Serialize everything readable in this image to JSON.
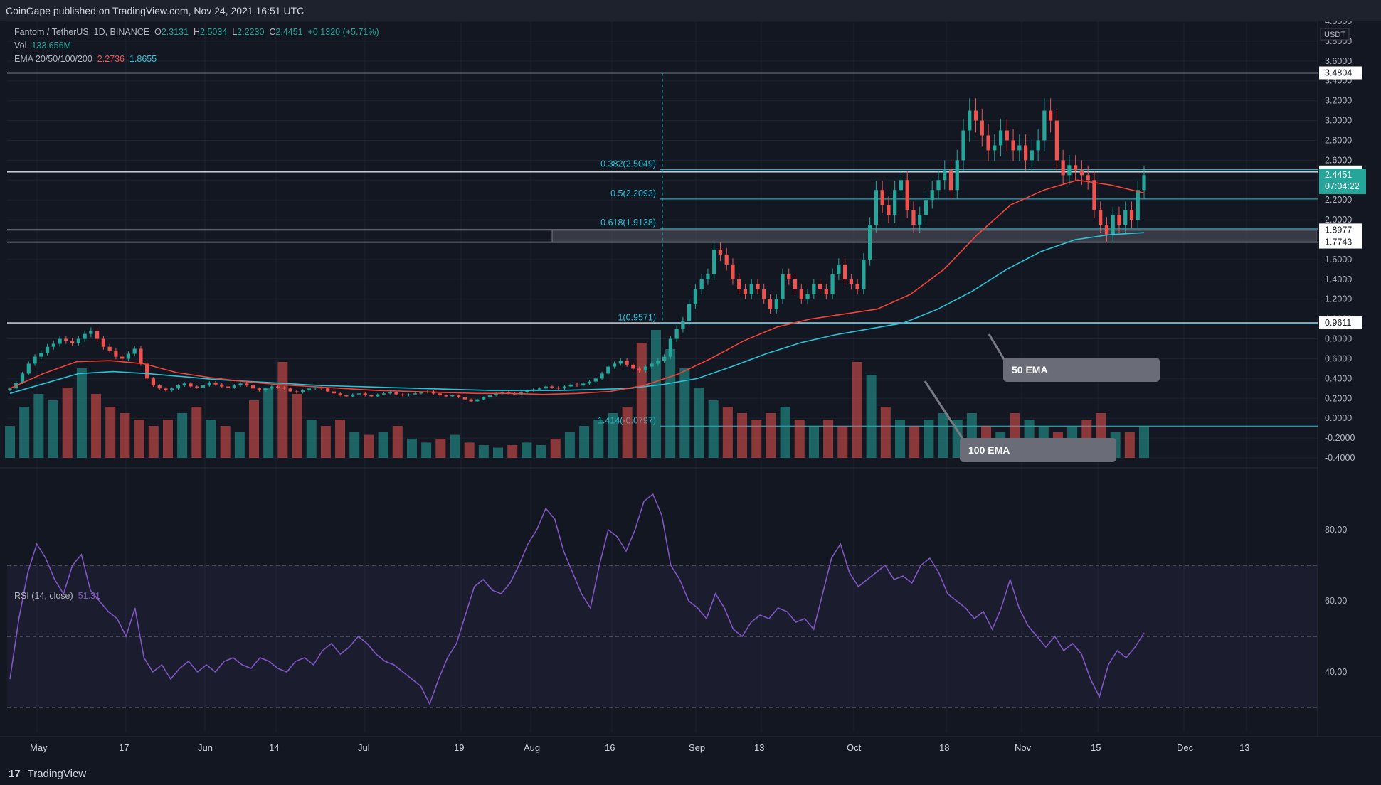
{
  "header": {
    "published": "CoinGape published on TradingView.com, Nov 24, 2021 16:51 UTC"
  },
  "legend": {
    "symbol": "Fantom / TetherUS, 1D, BINANCE",
    "o_label": "O",
    "o": "2.3131",
    "h_label": "H",
    "h": "2.5034",
    "l_label": "L",
    "l": "2.2230",
    "c_label": "C",
    "c": "2.4451",
    "change": "+0.1320 (+5.71%)",
    "vol_label": "Vol",
    "vol": "133.656M",
    "ema_label": "EMA 20/50/100/200",
    "ema_a": "2.2736",
    "ema_b": "1.8655"
  },
  "rsi": {
    "label": "RSI (14, close)",
    "value": "51.31"
  },
  "footer": {
    "brand": "TradingView",
    "logo": "17"
  },
  "colors": {
    "bg": "#131722",
    "up": "#26a69a",
    "down": "#ef5350",
    "ema50": "#f44336",
    "ema100": "#26c6da",
    "rsi": "#7e57c2",
    "fib": "#26c6da"
  },
  "chart_data": [
    {
      "type": "candlestick",
      "symbol": "Fantom / TetherUS",
      "unit": "USDT",
      "ylim": [
        -0.4,
        4.0
      ],
      "yticks": [
        "4.0000",
        "3.8000",
        "3.6000",
        "3.4000",
        "3.2000",
        "3.0000",
        "2.8000",
        "2.6000",
        "2.4000",
        "2.2000",
        "2.0000",
        "1.8000",
        "1.6000",
        "1.4000",
        "1.2000",
        "1.0000",
        "0.8000",
        "0.6000",
        "0.4000",
        "0.2000",
        "0.0000",
        "-0.2000",
        "-0.4000"
      ],
      "xticks": [
        "May",
        "17",
        "Jun",
        "14",
        "Jul",
        "19",
        "Aug",
        "16",
        "Sep",
        "13",
        "Oct",
        "18",
        "Nov",
        "15",
        "Dec",
        "13"
      ],
      "price_tags": [
        {
          "label": "3.4804",
          "value": 3.4804
        },
        {
          "label": "2.4822",
          "value": 2.4822
        },
        {
          "label": "2.4451",
          "value": 2.4451,
          "sub": "07:04:22",
          "current": true
        },
        {
          "label": "1.8977",
          "value": 1.8977
        },
        {
          "label": "1.7743",
          "value": 1.7743
        },
        {
          "label": "0.9611",
          "value": 0.9611
        }
      ],
      "horizontal_levels": [
        3.4804,
        2.4822,
        1.8977,
        1.7743,
        0.9611
      ],
      "fib_levels": [
        {
          "label": "0.382(2.5049)",
          "value": 2.5049
        },
        {
          "label": "0.5(2.2093)",
          "value": 2.2093
        },
        {
          "label": "0.618(1.9138)",
          "value": 1.9138
        },
        {
          "label": "1(0.9571)",
          "value": 0.9571
        },
        {
          "label": "1.414(-0.0797)",
          "value": -0.0797
        }
      ],
      "annotations": [
        "50 EMA",
        "100 EMA"
      ],
      "daily_close_approx": [
        0.3,
        0.36,
        0.45,
        0.55,
        0.62,
        0.66,
        0.72,
        0.75,
        0.8,
        0.78,
        0.76,
        0.8,
        0.85,
        0.88,
        0.8,
        0.72,
        0.68,
        0.62,
        0.6,
        0.65,
        0.7,
        0.55,
        0.4,
        0.33,
        0.3,
        0.28,
        0.3,
        0.33,
        0.35,
        0.32,
        0.31,
        0.33,
        0.36,
        0.34,
        0.32,
        0.31,
        0.33,
        0.35,
        0.33,
        0.3,
        0.28,
        0.3,
        0.32,
        0.31,
        0.3,
        0.27,
        0.26,
        0.28,
        0.3,
        0.31,
        0.3,
        0.27,
        0.25,
        0.23,
        0.22,
        0.24,
        0.25,
        0.23,
        0.22,
        0.24,
        0.25,
        0.26,
        0.24,
        0.23,
        0.24,
        0.25,
        0.26,
        0.27,
        0.25,
        0.23,
        0.22,
        0.23,
        0.21,
        0.19,
        0.17,
        0.19,
        0.21,
        0.23,
        0.25,
        0.26,
        0.25,
        0.24,
        0.26,
        0.28,
        0.29,
        0.3,
        0.32,
        0.31,
        0.3,
        0.32,
        0.34,
        0.33,
        0.35,
        0.37,
        0.4,
        0.45,
        0.52,
        0.55,
        0.58,
        0.54,
        0.5,
        0.48,
        0.52,
        0.55,
        0.58,
        0.62,
        0.8,
        0.9,
        0.98,
        1.15,
        1.3,
        1.4,
        1.45,
        1.7,
        1.65,
        1.55,
        1.4,
        1.3,
        1.25,
        1.35,
        1.3,
        1.2,
        1.1,
        1.2,
        1.45,
        1.4,
        1.3,
        1.2,
        1.25,
        1.35,
        1.3,
        1.25,
        1.45,
        1.55,
        1.4,
        1.35,
        1.3,
        1.6,
        1.95,
        2.3,
        2.15,
        2.05,
        2.3,
        2.4,
        2.1,
        1.95,
        2.05,
        2.2,
        2.3,
        2.4,
        2.5,
        2.3,
        2.6,
        2.9,
        3.1,
        3.0,
        2.85,
        2.7,
        2.75,
        2.9,
        2.8,
        2.7,
        2.75,
        2.6,
        2.7,
        2.8,
        3.1,
        3.0,
        2.6,
        2.45,
        2.55,
        2.5,
        2.45,
        2.4,
        2.1,
        1.95,
        1.85,
        2.05,
        1.95,
        2.1,
        2.0,
        2.3,
        2.45
      ],
      "ema50_approx": [
        0.3,
        0.45,
        0.57,
        0.58,
        0.55,
        0.46,
        0.41,
        0.37,
        0.34,
        0.32,
        0.3,
        0.28,
        0.27,
        0.26,
        0.25,
        0.25,
        0.24,
        0.25,
        0.27,
        0.33,
        0.44,
        0.6,
        0.78,
        0.92,
        1.0,
        1.05,
        1.1,
        1.25,
        1.5,
        1.85,
        2.15,
        2.3,
        2.4,
        2.35,
        2.27
      ],
      "ema100_approx": [
        0.25,
        0.35,
        0.45,
        0.47,
        0.45,
        0.42,
        0.39,
        0.37,
        0.35,
        0.33,
        0.32,
        0.31,
        0.3,
        0.29,
        0.28,
        0.28,
        0.28,
        0.29,
        0.3,
        0.34,
        0.4,
        0.52,
        0.65,
        0.76,
        0.84,
        0.9,
        0.96,
        1.1,
        1.28,
        1.5,
        1.68,
        1.8,
        1.85,
        1.87
      ],
      "volume_relative_approx": [
        0.25,
        0.4,
        0.5,
        0.45,
        0.55,
        0.7,
        0.5,
        0.4,
        0.35,
        0.3,
        0.25,
        0.3,
        0.35,
        0.4,
        0.3,
        0.25,
        0.2,
        0.45,
        0.55,
        0.75,
        0.5,
        0.3,
        0.25,
        0.3,
        0.2,
        0.18,
        0.2,
        0.25,
        0.15,
        0.12,
        0.15,
        0.18,
        0.12,
        0.1,
        0.08,
        0.1,
        0.12,
        0.1,
        0.15,
        0.2,
        0.25,
        0.3,
        0.35,
        0.4,
        0.9,
        1.0,
        0.85,
        0.7,
        0.55,
        0.45,
        0.4,
        0.35,
        0.3,
        0.35,
        0.4,
        0.3,
        0.25,
        0.3,
        0.25,
        0.75,
        0.65,
        0.4,
        0.3,
        0.25,
        0.3,
        0.35,
        0.3,
        0.35,
        0.25,
        0.2,
        0.35,
        0.3,
        0.25,
        0.2,
        0.25,
        0.3,
        0.35,
        0.2,
        0.2,
        0.25
      ]
    },
    {
      "type": "line",
      "name": "RSI (14, close)",
      "ylim": [
        25,
        95
      ],
      "yticks": [
        "80.00",
        "60.00",
        "40.00"
      ],
      "bands": {
        "upper": 70,
        "middle": 50,
        "lower": 30
      },
      "values_approx": [
        38,
        55,
        68,
        76,
        72,
        66,
        62,
        70,
        73,
        63,
        60,
        57,
        55,
        50,
        58,
        44,
        40,
        42,
        38,
        41,
        43,
        40,
        42,
        40,
        43,
        44,
        42,
        41,
        44,
        43,
        41,
        40,
        43,
        44,
        42,
        46,
        48,
        45,
        47,
        50,
        48,
        45,
        43,
        42,
        40,
        38,
        36,
        31,
        38,
        44,
        48,
        56,
        64,
        66,
        63,
        62,
        65,
        70,
        76,
        80,
        86,
        83,
        74,
        68,
        62,
        58,
        70,
        80,
        78,
        74,
        80,
        88,
        90,
        84,
        70,
        66,
        60,
        58,
        55,
        62,
        58,
        52,
        50,
        54,
        56,
        55,
        58,
        57,
        54,
        55,
        52,
        62,
        72,
        76,
        68,
        64,
        66,
        68,
        70,
        66,
        67,
        65,
        70,
        72,
        68,
        62,
        60,
        58,
        55,
        57,
        52,
        58,
        66,
        58,
        53,
        50,
        47,
        50,
        46,
        48,
        45,
        38,
        33,
        42,
        46,
        44,
        47,
        51
      ]
    }
  ]
}
